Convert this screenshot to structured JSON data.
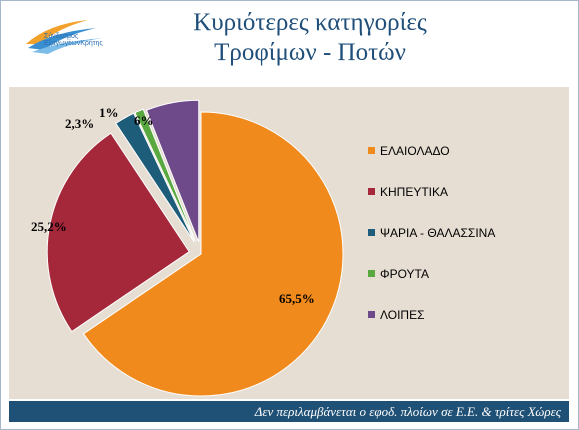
{
  "header": {
    "title_line1": "Κυριότερες κατηγορίες",
    "title_line2": "Τροφίμων - Ποτών",
    "logo_text_line1": "Σύνδεσμος",
    "logo_text_line2": "ΕξαγωγέωνΚρήτης"
  },
  "footer": {
    "note": "Δεν περιλαμβάνεται ο εφοδ. πλοίων σε Ε.Ε. & τρίτες Χώρες"
  },
  "chart_data": {
    "type": "pie",
    "categories": [
      "ΕΛΑΙΟΛΑΔΟ",
      "ΚΗΠΕΥΤΙΚΑ",
      "ΨΑΡΙΑ - ΘΑΛΑΣΣΙΝΑ",
      "ΦΡΟΥΤΑ",
      "ΛΟΙΠΕΣ"
    ],
    "values": [
      65.5,
      25.2,
      2.3,
      1,
      6
    ],
    "labels": [
      "65,5%",
      "25,2%",
      "2,3%",
      "1%",
      "6%"
    ],
    "colors": [
      "#f08a1c",
      "#a4273a",
      "#1d5d7a",
      "#5aa840",
      "#6e4a8a"
    ],
    "exploded": true,
    "legend_position": "right"
  }
}
